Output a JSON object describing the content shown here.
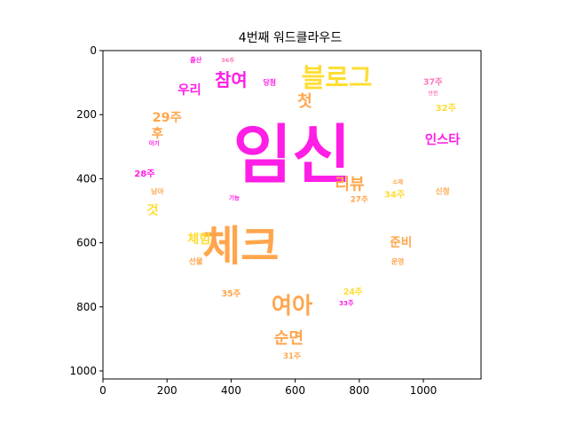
{
  "chart_data": {
    "type": "wordcloud-image",
    "title": "4번째 워드클라우드",
    "xlabel": "",
    "ylabel": "",
    "xlim": [
      0,
      1180
    ],
    "ylim": [
      1025,
      0
    ],
    "x_ticks": [
      0,
      200,
      400,
      600,
      800,
      1000
    ],
    "y_ticks": [
      0,
      200,
      400,
      600,
      800,
      1000
    ],
    "grid": false,
    "mask_shape": "heart",
    "colors": {
      "magenta": "#ff1ee6",
      "orange": "#ffa64d",
      "yellow": "#ffdd33",
      "pink": "#ff77bb"
    },
    "words": [
      {
        "text": "임신",
        "x": 590,
        "y": 340,
        "size": 200,
        "color": "magenta"
      },
      {
        "text": "체크",
        "x": 430,
        "y": 620,
        "size": 130,
        "color": "orange"
      },
      {
        "text": "블로그",
        "x": 730,
        "y": 90,
        "size": 80,
        "color": "yellow"
      },
      {
        "text": "참여",
        "x": 400,
        "y": 95,
        "size": 55,
        "color": "magenta"
      },
      {
        "text": "우리",
        "x": 270,
        "y": 125,
        "size": 40,
        "color": "magenta"
      },
      {
        "text": "여아",
        "x": 590,
        "y": 800,
        "size": 70,
        "color": "orange"
      },
      {
        "text": "순면",
        "x": 580,
        "y": 900,
        "size": 50,
        "color": "orange"
      },
      {
        "text": "인스타",
        "x": 1060,
        "y": 280,
        "size": 40,
        "color": "magenta"
      },
      {
        "text": "리뷰",
        "x": 770,
        "y": 420,
        "size": 50,
        "color": "orange"
      },
      {
        "text": "준비",
        "x": 930,
        "y": 600,
        "size": 38,
        "color": "orange"
      },
      {
        "text": "체험",
        "x": 300,
        "y": 590,
        "size": 40,
        "color": "yellow"
      },
      {
        "text": "34주",
        "x": 910,
        "y": 450,
        "size": 28,
        "color": "yellow"
      },
      {
        "text": "32주",
        "x": 1070,
        "y": 180,
        "size": 28,
        "color": "yellow"
      },
      {
        "text": "37주",
        "x": 1030,
        "y": 100,
        "size": 26,
        "color": "pink"
      },
      {
        "text": "29주",
        "x": 200,
        "y": 210,
        "size": 40,
        "color": "orange"
      },
      {
        "text": "28주",
        "x": 130,
        "y": 385,
        "size": 28,
        "color": "magenta"
      },
      {
        "text": "35주",
        "x": 400,
        "y": 760,
        "size": 26,
        "color": "orange"
      },
      {
        "text": "24주",
        "x": 780,
        "y": 755,
        "size": 26,
        "color": "yellow"
      },
      {
        "text": "33주",
        "x": 760,
        "y": 790,
        "size": 20,
        "color": "magenta"
      },
      {
        "text": "31주",
        "x": 590,
        "y": 955,
        "size": 24,
        "color": "orange"
      },
      {
        "text": "27주",
        "x": 800,
        "y": 465,
        "size": 24,
        "color": "orange"
      },
      {
        "text": "36주",
        "x": 390,
        "y": 30,
        "size": 18,
        "color": "pink"
      },
      {
        "text": "출산",
        "x": 290,
        "y": 30,
        "size": 20,
        "color": "magenta"
      },
      {
        "text": "신청",
        "x": 1060,
        "y": 440,
        "size": 24,
        "color": "orange"
      },
      {
        "text": "선물",
        "x": 290,
        "y": 660,
        "size": 24,
        "color": "orange"
      },
      {
        "text": "운영",
        "x": 920,
        "y": 660,
        "size": 22,
        "color": "orange"
      },
      {
        "text": "첫",
        "x": 630,
        "y": 160,
        "size": 50,
        "color": "orange"
      },
      {
        "text": "것",
        "x": 155,
        "y": 500,
        "size": 40,
        "color": "yellow"
      },
      {
        "text": "후",
        "x": 170,
        "y": 260,
        "size": 40,
        "color": "orange"
      },
      {
        "text": "당첨",
        "x": 520,
        "y": 100,
        "size": 22,
        "color": "magenta"
      },
      {
        "text": "기능",
        "x": 410,
        "y": 460,
        "size": 18,
        "color": "magenta"
      },
      {
        "text": "소재",
        "x": 920,
        "y": 410,
        "size": 18,
        "color": "orange"
      },
      {
        "text": "안전",
        "x": 1030,
        "y": 135,
        "size": 16,
        "color": "pink"
      },
      {
        "text": "남아",
        "x": 170,
        "y": 440,
        "size": 22,
        "color": "orange"
      },
      {
        "text": "아기",
        "x": 160,
        "y": 290,
        "size": 18,
        "color": "magenta"
      }
    ]
  }
}
